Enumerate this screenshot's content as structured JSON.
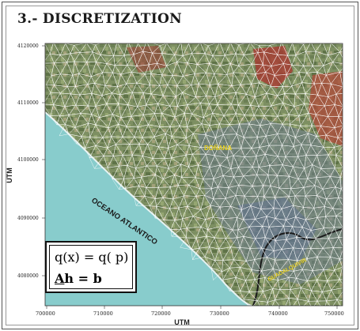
{
  "title": "3.- DISCRETIZATION",
  "map": {
    "x_axis_label": "UTM",
    "y_axis_label": "UTM",
    "x_ticks": [
      "700000",
      "710000",
      "720000",
      "730000",
      "740000",
      "750000"
    ],
    "y_ticks": [
      "4120000",
      "4110000",
      "4100000",
      "4090000",
      "4080000"
    ],
    "ocean_label": "OCEANO ATLANTICO",
    "place_label_1": "DOÑANA",
    "place_label_2": "GUADALQUIVIR",
    "colors": {
      "ocean": "#88cccc",
      "land": "#8a9a6a",
      "mesh": "#ffffff",
      "place_label": "#e8d020",
      "urban": "#b03030"
    }
  },
  "equations": {
    "line1": "q(x) = q( p)",
    "line2_a": "A",
    "line2_h": "h",
    "line2_rest": " = b"
  }
}
